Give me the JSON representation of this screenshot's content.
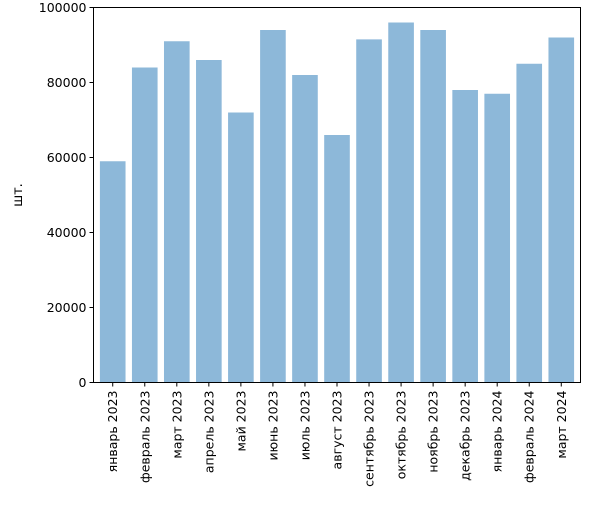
{
  "chart_data": {
    "type": "bar",
    "categories": [
      "январь 2023",
      "февраль 2023",
      "март 2023",
      "апрель 2023",
      "май 2023",
      "июнь 2023",
      "июль 2023",
      "август 2023",
      "сентябрь 2023",
      "октябрь 2023",
      "ноябрь 2023",
      "декабрь 2023",
      "январь 2024",
      "февраль 2024",
      "март 2024"
    ],
    "values": [
      59000,
      84000,
      91000,
      86000,
      72000,
      94000,
      82000,
      66000,
      91500,
      96000,
      94000,
      78000,
      77000,
      85000,
      92000
    ],
    "ylabel": "шт.",
    "xlabel": "",
    "ylim": [
      0,
      100000
    ],
    "yticks": [
      0,
      20000,
      40000,
      60000,
      80000,
      100000
    ],
    "bar_color": "#8db8d9",
    "grid": false
  }
}
